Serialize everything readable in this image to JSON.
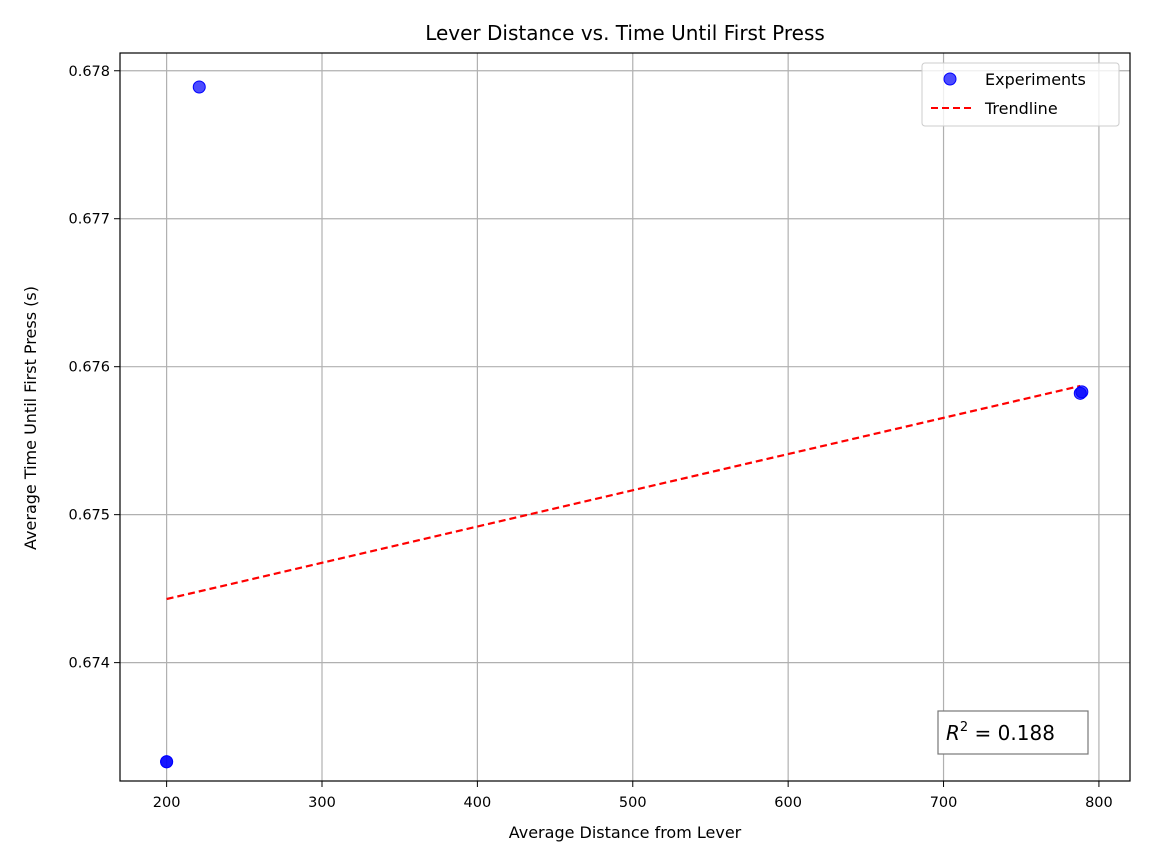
{
  "chart_data": {
    "type": "scatter",
    "title": "Lever Distance vs. Time Until First Press",
    "xlabel": "Average Distance from Lever",
    "ylabel": "Average Time Until First Press (s)",
    "xlim": [
      170,
      820
    ],
    "ylim": [
      0.6732,
      0.67812
    ],
    "x_ticks": [
      200,
      300,
      400,
      500,
      600,
      700,
      800
    ],
    "y_ticks": [
      0.674,
      0.675,
      0.676,
      0.677,
      0.678
    ],
    "x_tick_labels": [
      "200",
      "300",
      "400",
      "500",
      "600",
      "700",
      "800"
    ],
    "y_tick_labels": [
      "0.674",
      "0.675",
      "0.676",
      "0.677",
      "0.678"
    ],
    "grid": true,
    "legend_position": "top-right",
    "series": [
      {
        "name": "Experiments",
        "kind": "scatter",
        "color": "#0000ff",
        "points": [
          {
            "x": 221,
            "y": 0.67789
          },
          {
            "x": 200,
            "y": 0.67333
          },
          {
            "x": 200,
            "y": 0.67333
          },
          {
            "x": 788,
            "y": 0.67582
          },
          {
            "x": 789,
            "y": 0.67583
          }
        ]
      },
      {
        "name": "Trendline",
        "kind": "line",
        "style": "dashed",
        "color": "#ff0000",
        "points": [
          {
            "x": 200,
            "y": 0.67443
          },
          {
            "x": 788,
            "y": 0.67587
          }
        ]
      }
    ],
    "annotation": {
      "prefix": "R",
      "sup": "2",
      "text": " = 0.188",
      "position": "bottom-right"
    }
  }
}
